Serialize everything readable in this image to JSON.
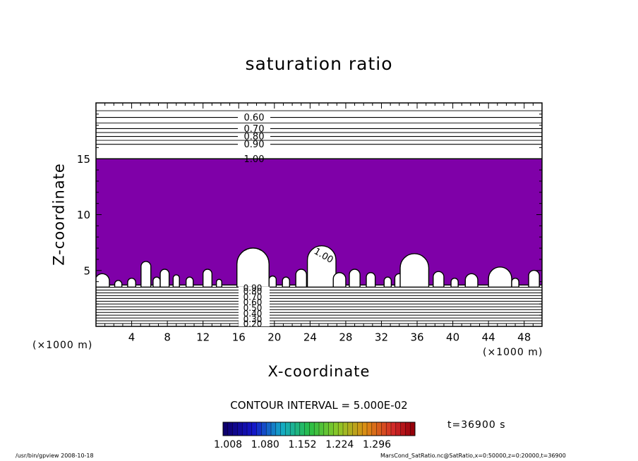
{
  "figure": {
    "footer_left": "/usr/bin/gpview   2008-10-18",
    "footer_right": "MarsCond_SatRatio.nc@SatRatio,x=0:50000,z=0:20000,t=36900",
    "time_label": "t=36900 s",
    "contour_interval_text": "CONTOUR INTERVAL = 5.000E-02",
    "x_unit": "(×1000 m)",
    "fill_color": "#7f00a8",
    "line_color": "#000000"
  },
  "chart_data": {
    "type": "heatmap",
    "title": "saturation ratio",
    "xlabel": "X-coordinate",
    "ylabel": "Z-coordinate",
    "xlim": [
      0,
      50
    ],
    "ylim": [
      0,
      20
    ],
    "xticks": [
      4,
      8,
      12,
      16,
      20,
      24,
      28,
      32,
      36,
      40,
      44,
      48
    ],
    "yticks": [
      5,
      10,
      15
    ],
    "contour_levels_upper": [
      {
        "z": 18.7,
        "label": "0.60"
      },
      {
        "z": 17.7,
        "label": "0.70"
      },
      {
        "z": 17.0,
        "label": "0.80"
      },
      {
        "z": 16.3,
        "label": "0.90"
      },
      {
        "z": 15.0,
        "label": "1.00"
      }
    ],
    "contour_labels_lower": [
      {
        "z": 3.4,
        "label": "0.90"
      },
      {
        "z": 3.1,
        "label": "0.80"
      },
      {
        "z": 2.6,
        "label": "0.70"
      },
      {
        "z": 2.1,
        "label": "0.60"
      },
      {
        "z": 1.6,
        "label": "0.50"
      },
      {
        "z": 1.1,
        "label": "0.40"
      },
      {
        "z": 0.6,
        "label": "0.30"
      },
      {
        "z": 0.2,
        "label": "0.20"
      }
    ],
    "supersaturated_region": {
      "level": 1.0,
      "z_top": 15.0,
      "z_bottom": 3.7
    },
    "cloud_clear_patches": [
      {
        "x": 0.7,
        "w": 1.6,
        "h": 1.2
      },
      {
        "x": 2.5,
        "w": 0.8,
        "h": 0.6
      },
      {
        "x": 4.0,
        "w": 0.9,
        "h": 0.8
      },
      {
        "x": 5.6,
        "w": 1.1,
        "h": 2.3
      },
      {
        "x": 6.8,
        "w": 0.8,
        "h": 0.9
      },
      {
        "x": 7.7,
        "w": 1.0,
        "h": 1.6
      },
      {
        "x": 9.0,
        "w": 0.7,
        "h": 1.1
      },
      {
        "x": 10.5,
        "w": 0.8,
        "h": 0.9
      },
      {
        "x": 12.5,
        "w": 1.0,
        "h": 1.6
      },
      {
        "x": 13.8,
        "w": 0.6,
        "h": 0.7
      },
      {
        "x": 17.6,
        "w": 3.6,
        "h": 3.5
      },
      {
        "x": 19.8,
        "w": 0.8,
        "h": 1.0
      },
      {
        "x": 21.3,
        "w": 0.8,
        "h": 0.9
      },
      {
        "x": 23.0,
        "w": 1.2,
        "h": 1.6
      },
      {
        "x": 25.3,
        "w": 3.2,
        "h": 3.7
      },
      {
        "x": 27.3,
        "w": 1.4,
        "h": 1.3
      },
      {
        "x": 29.0,
        "w": 1.2,
        "h": 1.6
      },
      {
        "x": 30.8,
        "w": 1.0,
        "h": 1.3
      },
      {
        "x": 32.7,
        "w": 0.8,
        "h": 0.9
      },
      {
        "x": 34.0,
        "w": 1.0,
        "h": 1.2
      },
      {
        "x": 35.7,
        "w": 3.2,
        "h": 3.0
      },
      {
        "x": 38.4,
        "w": 1.2,
        "h": 1.4
      },
      {
        "x": 40.2,
        "w": 0.8,
        "h": 0.8
      },
      {
        "x": 42.1,
        "w": 1.4,
        "h": 1.2
      },
      {
        "x": 45.3,
        "w": 2.6,
        "h": 1.8
      },
      {
        "x": 47.0,
        "w": 0.8,
        "h": 0.8
      },
      {
        "x": 49.1,
        "w": 1.2,
        "h": 1.5
      }
    ],
    "inner_label": {
      "x": 25.5,
      "z": 6.3,
      "label": "1.00"
    },
    "colorbar": {
      "tick_labels": [
        "1.008",
        "1.080",
        "1.152",
        "1.224",
        "1.296"
      ],
      "range": [
        1.008,
        1.296
      ]
    }
  }
}
